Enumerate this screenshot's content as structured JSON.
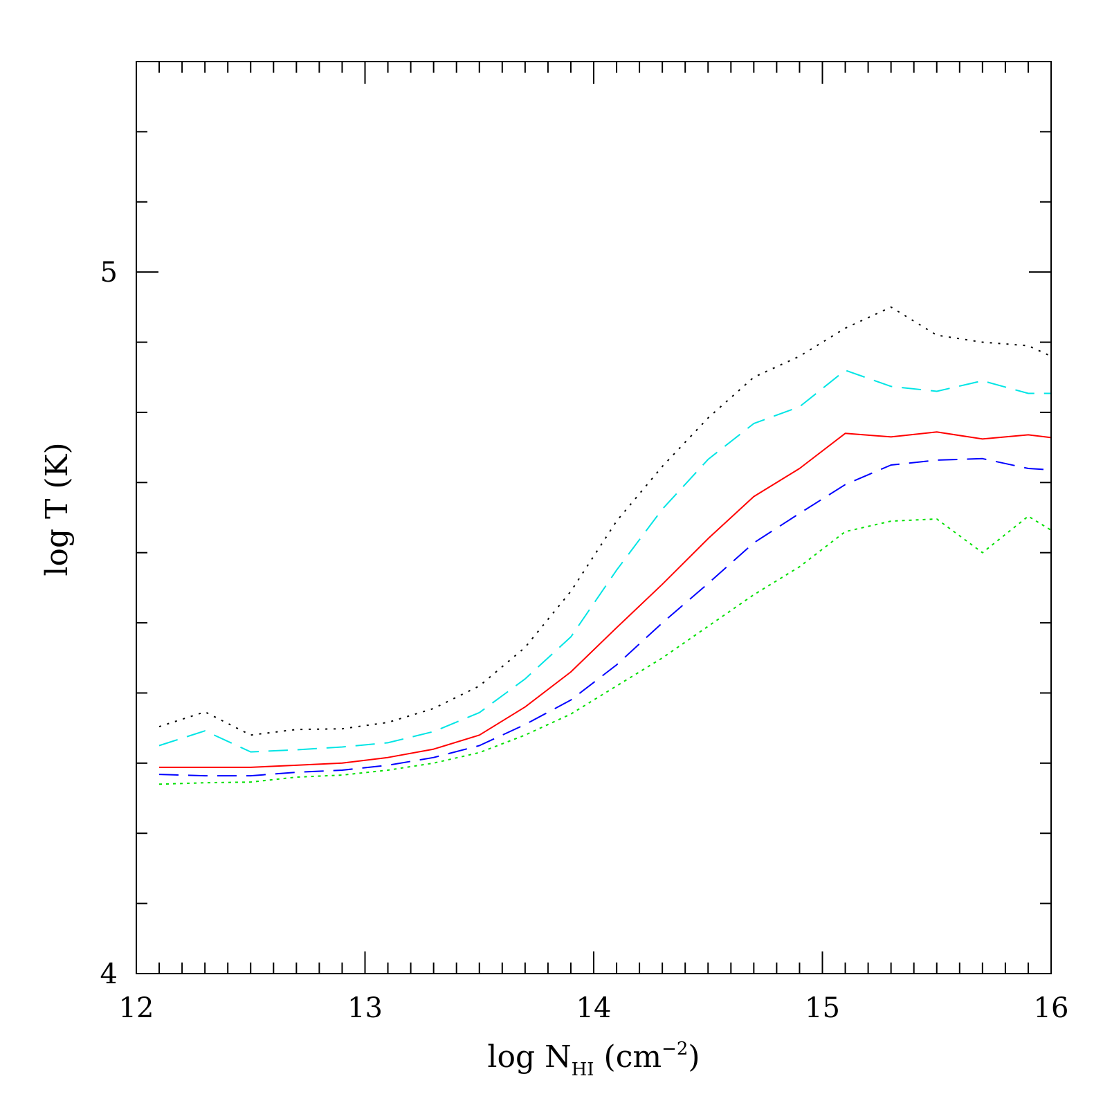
{
  "chart_data": {
    "type": "line",
    "title": "",
    "xlabel": "log N",
    "xlabel_subscript": "HI",
    "xlabel_unit_open": " (cm",
    "xlabel_superscript": "−2",
    "xlabel_unit_close": ")",
    "ylabel": "log T (K)",
    "xlim": [
      12,
      16
    ],
    "ylim": [
      4,
      5.3
    ],
    "x_ticks": [
      12,
      13,
      14,
      15,
      16
    ],
    "x_tick_labels": [
      "12",
      "13",
      "14",
      "15",
      "16"
    ],
    "y_ticks": [
      4,
      5
    ],
    "y_tick_labels": [
      "4",
      "5"
    ],
    "x_minor_step": 0.1,
    "y_minor_step": 0.1,
    "grid": false,
    "series": [
      {
        "name": "black-dotted",
        "color": "#000000",
        "dash": "3,9",
        "x": [
          12.1,
          12.3,
          12.5,
          12.7,
          12.9,
          13.1,
          13.3,
          13.5,
          13.7,
          13.9,
          14.1,
          14.3,
          14.5,
          14.7,
          14.9,
          15.1,
          15.3,
          15.5,
          15.7,
          15.9,
          16.0
        ],
        "y": [
          4.352,
          4.373,
          4.34,
          4.348,
          4.349,
          4.358,
          4.378,
          4.41,
          4.465,
          4.545,
          4.645,
          4.723,
          4.792,
          4.85,
          4.88,
          4.92,
          4.95,
          4.91,
          4.9,
          4.895,
          4.88
        ]
      },
      {
        "name": "cyan-dashed",
        "color": "#00e5e5",
        "dash": "28,14",
        "x": [
          12.1,
          12.3,
          12.5,
          12.7,
          12.9,
          13.1,
          13.3,
          13.5,
          13.7,
          13.9,
          14.1,
          14.3,
          14.5,
          14.7,
          14.9,
          15.1,
          15.3,
          15.5,
          15.7,
          15.9,
          16.0
        ],
        "y": [
          4.325,
          4.346,
          4.316,
          4.319,
          4.323,
          4.329,
          4.345,
          4.372,
          4.42,
          4.48,
          4.575,
          4.662,
          4.733,
          4.784,
          4.808,
          4.86,
          4.837,
          4.83,
          4.845,
          4.827,
          4.827
        ]
      },
      {
        "name": "red-solid",
        "color": "#ff0000",
        "dash": "",
        "x": [
          12.1,
          12.3,
          12.5,
          12.7,
          12.9,
          13.1,
          13.3,
          13.5,
          13.7,
          13.9,
          14.1,
          14.3,
          14.5,
          14.7,
          14.9,
          15.1,
          15.3,
          15.5,
          15.7,
          15.9,
          16.0
        ],
        "y": [
          4.294,
          4.294,
          4.294,
          4.297,
          4.3,
          4.308,
          4.32,
          4.34,
          4.38,
          4.43,
          4.493,
          4.555,
          4.62,
          4.68,
          4.72,
          4.77,
          4.765,
          4.772,
          4.762,
          4.768,
          4.764
        ]
      },
      {
        "name": "blue-dashed",
        "color": "#0000ff",
        "dash": "28,14",
        "x": [
          12.1,
          12.3,
          12.5,
          12.7,
          12.9,
          13.1,
          13.3,
          13.5,
          13.7,
          13.9,
          14.1,
          14.3,
          14.5,
          14.7,
          14.9,
          15.1,
          15.3,
          15.5,
          15.7,
          15.9,
          16.0
        ],
        "y": [
          4.284,
          4.282,
          4.282,
          4.287,
          4.29,
          4.297,
          4.308,
          4.325,
          4.355,
          4.39,
          4.44,
          4.5,
          4.556,
          4.614,
          4.656,
          4.697,
          4.725,
          4.732,
          4.734,
          4.72,
          4.718
        ]
      },
      {
        "name": "green-dotted",
        "color": "#00e000",
        "dash": "4,6",
        "x": [
          12.1,
          12.3,
          12.5,
          12.7,
          12.9,
          13.1,
          13.3,
          13.5,
          13.7,
          13.9,
          14.1,
          14.3,
          14.5,
          14.7,
          14.9,
          15.1,
          15.3,
          15.5,
          15.7,
          15.9,
          16.0
        ],
        "y": [
          4.27,
          4.272,
          4.273,
          4.28,
          4.283,
          4.29,
          4.3,
          4.315,
          4.34,
          4.37,
          4.41,
          4.45,
          4.495,
          4.54,
          4.58,
          4.63,
          4.645,
          4.648,
          4.6,
          4.652,
          4.632
        ]
      }
    ]
  }
}
